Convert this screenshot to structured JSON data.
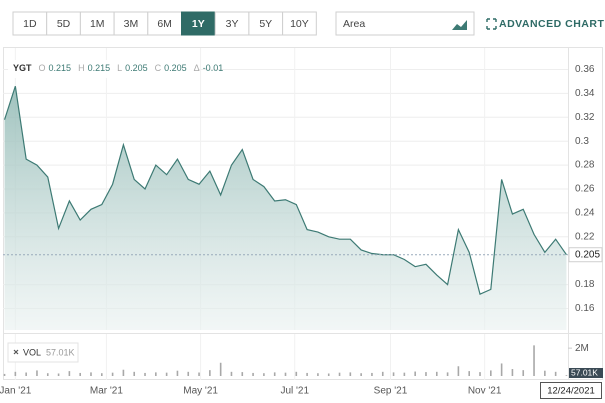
{
  "toolbar": {
    "ranges": [
      "1D",
      "5D",
      "1M",
      "3M",
      "6M",
      "1Y",
      "3Y",
      "5Y",
      "10Y"
    ],
    "active_range": "1Y",
    "chart_type": "Area",
    "advanced_chart": "ADVANCED CHART"
  },
  "chart_data": {
    "type": "area",
    "symbol": "YGT",
    "quote": [
      {
        "label": "O",
        "value": 0.215
      },
      {
        "label": "H",
        "value": 0.215
      },
      {
        "label": "L",
        "value": 0.205
      },
      {
        "label": "C",
        "value": 0.205
      },
      {
        "label": "Δ",
        "value": -0.01
      }
    ],
    "x": [
      "2020-12-25",
      "2021-01-01",
      "2021-01-08",
      "2021-01-15",
      "2021-01-22",
      "2021-01-29",
      "2021-02-05",
      "2021-02-12",
      "2021-02-19",
      "2021-02-26",
      "2021-03-05",
      "2021-03-12",
      "2021-03-19",
      "2021-03-26",
      "2021-04-02",
      "2021-04-09",
      "2021-04-16",
      "2021-04-23",
      "2021-04-30",
      "2021-05-07",
      "2021-05-14",
      "2021-05-21",
      "2021-05-28",
      "2021-06-04",
      "2021-06-11",
      "2021-06-18",
      "2021-06-25",
      "2021-07-02",
      "2021-07-09",
      "2021-07-16",
      "2021-07-23",
      "2021-07-30",
      "2021-08-06",
      "2021-08-13",
      "2021-08-20",
      "2021-08-27",
      "2021-09-03",
      "2021-09-10",
      "2021-09-17",
      "2021-09-24",
      "2021-10-01",
      "2021-10-08",
      "2021-10-15",
      "2021-10-22",
      "2021-10-29",
      "2021-11-05",
      "2021-11-12",
      "2021-11-19",
      "2021-11-26",
      "2021-12-03",
      "2021-12-10",
      "2021-12-17",
      "2021-12-24"
    ],
    "series": [
      {
        "name": "YGT",
        "color": "#3d7a74",
        "current_value": 0.205,
        "values": [
          0.318,
          0.346,
          0.285,
          0.28,
          0.27,
          0.227,
          0.25,
          0.234,
          0.243,
          0.247,
          0.264,
          0.297,
          0.268,
          0.26,
          0.28,
          0.272,
          0.285,
          0.268,
          0.264,
          0.275,
          0.255,
          0.28,
          0.293,
          0.268,
          0.262,
          0.25,
          0.251,
          0.247,
          0.226,
          0.224,
          0.22,
          0.218,
          0.218,
          0.209,
          0.206,
          0.205,
          0.205,
          0.201,
          0.195,
          0.197,
          0.188,
          0.18,
          0.226,
          0.207,
          0.172,
          0.176,
          0.268,
          0.239,
          0.243,
          0.222,
          0.207,
          0.218,
          0.205
        ]
      },
      {
        "name": "VOL",
        "type": "bar",
        "axis": "y2",
        "color": "#a8a8a8",
        "current_label": {
          "value": 57010,
          "label": "57.01K"
        },
        "values": [
          150000,
          300000,
          250000,
          400000,
          200000,
          180000,
          350000,
          220000,
          260000,
          200000,
          240000,
          450000,
          300000,
          220000,
          260000,
          240000,
          380000,
          300000,
          250000,
          420000,
          950000,
          300000,
          280000,
          220000,
          200000,
          260000,
          240000,
          300000,
          220000,
          200000,
          180000,
          240000,
          260000,
          200000,
          220000,
          300000,
          260000,
          240000,
          320000,
          280000,
          300000,
          260000,
          700000,
          350000,
          280000,
          400000,
          900000,
          500000,
          420000,
          2200000,
          380000,
          300000,
          57010
        ]
      }
    ],
    "xlim": [
      "2020-12-24",
      "2021-12-25"
    ],
    "xticks": [
      {
        "value": "2021-01-01",
        "label": "Jan '21"
      },
      {
        "value": "2021-03-01",
        "label": "Mar '21"
      },
      {
        "value": "2021-05-01",
        "label": "May '21"
      },
      {
        "value": "2021-07-01",
        "label": "Jul '21"
      },
      {
        "value": "2021-09-01",
        "label": "Sep '21"
      },
      {
        "value": "2021-11-01",
        "label": "Nov '21"
      }
    ],
    "last_date": {
      "value": "2021-12-24",
      "label": "12/24/2021"
    },
    "ylim": [
      0.142,
      0.378
    ],
    "yticks": [
      0.16,
      0.18,
      0.22,
      0.24,
      0.26,
      0.28,
      0.3,
      0.32,
      0.34,
      0.36
    ],
    "y2lim": [
      0,
      2800000
    ],
    "y2ticks": [
      {
        "value": 2000000,
        "label": "2M"
      }
    ],
    "grid": true
  }
}
